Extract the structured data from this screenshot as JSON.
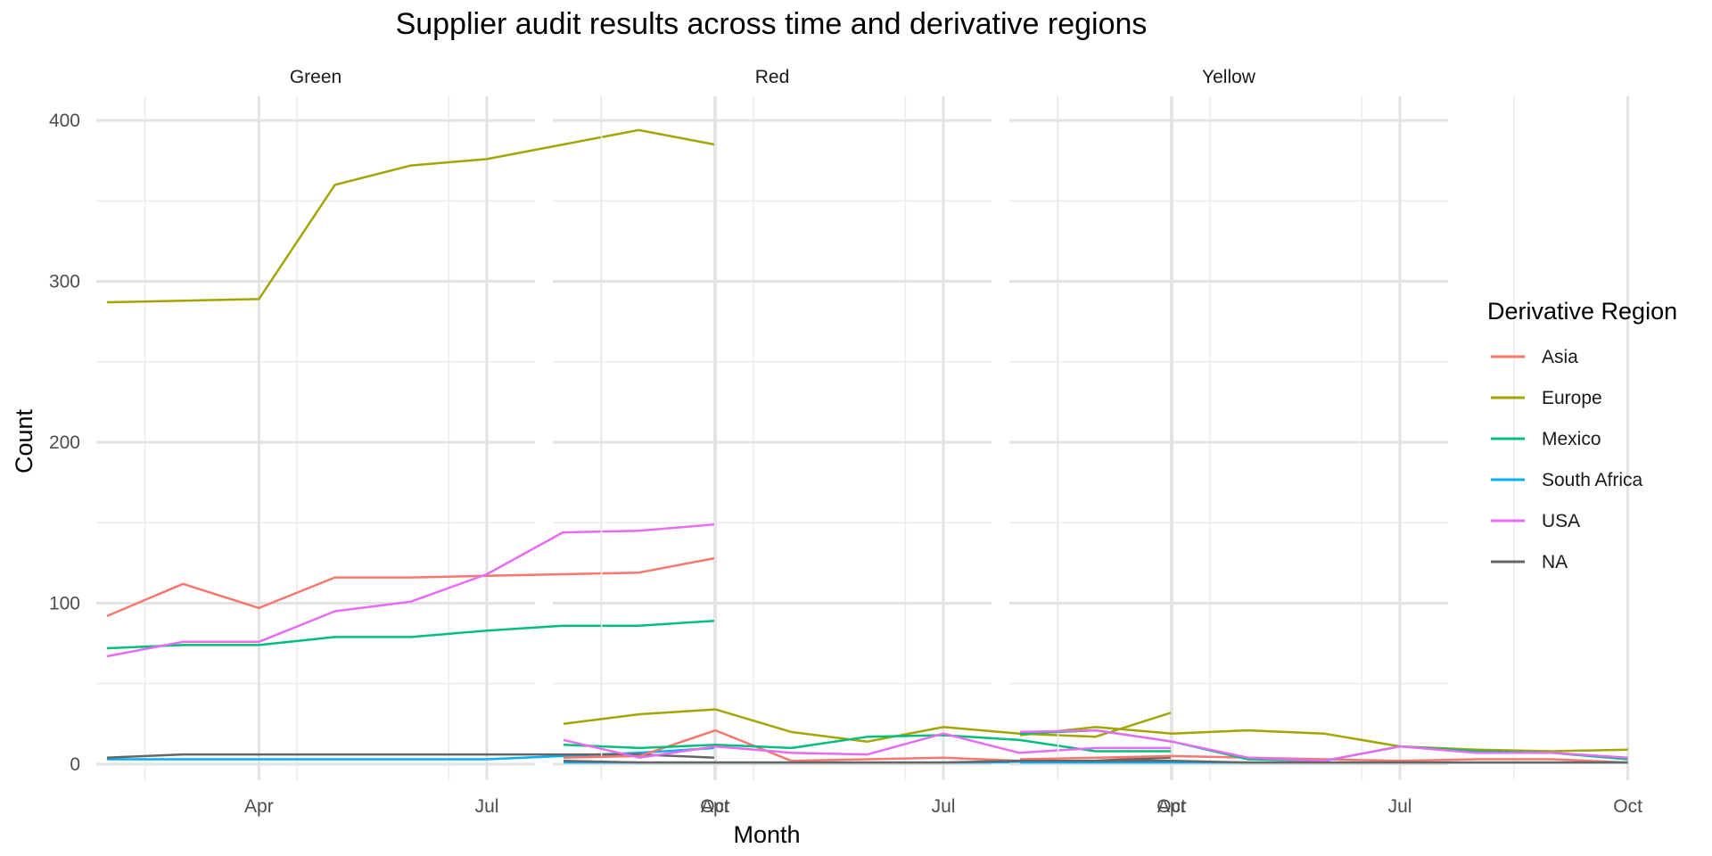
{
  "chart_data": {
    "type": "line",
    "title": "Supplier audit results across time and derivative regions",
    "xlabel": "Month",
    "ylabel": "Count",
    "x": [
      "Feb",
      "Mar",
      "Apr",
      "May",
      "Jun",
      "Jul",
      "Aug",
      "Sep",
      "Oct"
    ],
    "x_ticks": [
      "Apr",
      "Jul",
      "Oct"
    ],
    "y_ticks": [
      0,
      100,
      200,
      300,
      400
    ],
    "ylim": [
      -10,
      415
    ],
    "grid": true,
    "legend": {
      "title": "Derivative Region",
      "placement": "right",
      "entries": [
        "Asia",
        "Europe",
        "Mexico",
        "South Africa",
        "USA",
        "NA"
      ]
    },
    "colors": {
      "Asia": "#F8766D",
      "Europe": "#A3A500",
      "Mexico": "#00BF7D",
      "South Africa": "#00B0F6",
      "USA": "#E76BF3",
      "NA": "#666666"
    },
    "facets": [
      {
        "label": "Green",
        "series": [
          {
            "name": "Asia",
            "values": [
              92,
              112,
              97,
              116,
              116,
              117,
              118,
              119,
              128
            ]
          },
          {
            "name": "Europe",
            "values": [
              287,
              288,
              289,
              360,
              372,
              376,
              385,
              394,
              385
            ]
          },
          {
            "name": "Mexico",
            "values": [
              72,
              74,
              74,
              79,
              79,
              83,
              86,
              86,
              89
            ]
          },
          {
            "name": "South Africa",
            "values": [
              3,
              3,
              3,
              3,
              3,
              3,
              5,
              7,
              10
            ]
          },
          {
            "name": "USA",
            "values": [
              67,
              76,
              76,
              95,
              101,
              118,
              144,
              145,
              149
            ]
          },
          {
            "name": "NA",
            "values": [
              4,
              6,
              6,
              6,
              6,
              6,
              6,
              6,
              4
            ]
          }
        ]
      },
      {
        "label": "Red",
        "series": [
          {
            "name": "Asia",
            "values": [
              4,
              5,
              21,
              2,
              3,
              4,
              2,
              2,
              5
            ]
          },
          {
            "name": "Europe",
            "values": [
              25,
              31,
              34,
              20,
              14,
              23,
              19,
              17,
              32
            ]
          },
          {
            "name": "Mexico",
            "values": [
              12,
              10,
              12,
              10,
              17,
              18,
              15,
              8,
              8
            ]
          },
          {
            "name": "South Africa",
            "values": [
              1,
              1,
              1,
              1,
              1,
              1,
              1,
              1,
              1
            ]
          },
          {
            "name": "USA",
            "values": [
              15,
              4,
              11,
              7,
              6,
              19,
              7,
              10,
              10
            ]
          },
          {
            "name": "NA",
            "values": [
              2,
              1,
              1,
              1,
              1,
              1,
              2,
              2,
              4
            ]
          }
        ]
      },
      {
        "label": "Yellow",
        "series": [
          {
            "name": "Asia",
            "values": [
              3,
              4,
              5,
              4,
              3,
              2,
              3,
              3,
              1
            ]
          },
          {
            "name": "Europe",
            "values": [
              18,
              23,
              19,
              21,
              19,
              11,
              9,
              8,
              9
            ]
          },
          {
            "name": "Mexico",
            "values": [
              19,
              21,
              14,
              3,
              2,
              11,
              8,
              7,
              3
            ]
          },
          {
            "name": "South Africa",
            "values": [
              1,
              1,
              1,
              1,
              1,
              1,
              1,
              1,
              1
            ]
          },
          {
            "name": "USA",
            "values": [
              20,
              21,
              14,
              4,
              2,
              11,
              7,
              7,
              4
            ]
          },
          {
            "name": "NA",
            "values": [
              2,
              2,
              2,
              1,
              1,
              1,
              1,
              1,
              1
            ]
          }
        ]
      }
    ]
  }
}
